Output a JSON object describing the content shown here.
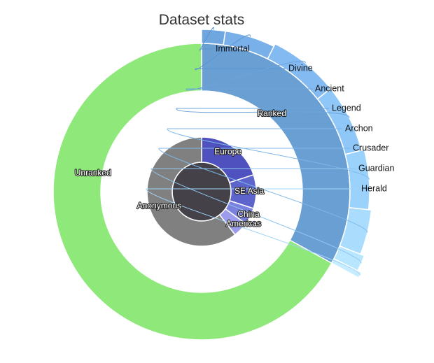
{
  "chart_data": {
    "type": "sunburst",
    "title": "Dataset stats",
    "colors": {
      "center": "#444148",
      "anonymous": "#808080",
      "ranked": "#6a9fd3",
      "unranked": "#8fe87a",
      "regions": [
        "#4f52be",
        "#5d64cc",
        "#7a80de",
        "#9d9cec"
      ],
      "ranks": [
        "#6fa6df",
        "#79b0e9",
        "#83baf1",
        "#8fc7f8",
        "#9bd2fb",
        "#a9dcfd",
        "#b8e6ff",
        "#c6edff"
      ],
      "leader": [
        "#5a94d0",
        "#5a94d0",
        "#6ba4dc",
        "#6ba4dc",
        "#7db6e8",
        "#7db6e8",
        "#8fc5f0",
        "#a0d4f8"
      ]
    },
    "rings": {
      "inner": [
        {
          "label": "Europe",
          "value": 20.0
        },
        {
          "label": "SE Asia",
          "value": 10.0
        },
        {
          "label": "China",
          "value": 5.0
        },
        {
          "label": "Americas",
          "value": 4.5
        },
        {
          "label": "Anonymous",
          "value": 60.5
        }
      ],
      "outer": [
        {
          "label": "Ranked",
          "value": 33.0
        },
        {
          "label": "Unranked",
          "value": 67.0
        }
      ],
      "ranked_breakdown": [
        {
          "label": "Immortal",
          "value": 2.2
        },
        {
          "label": "Divine",
          "value": 4.7
        },
        {
          "label": "Ancient",
          "value": 6.5
        },
        {
          "label": "Legend",
          "value": 6.3
        },
        {
          "label": "Archon",
          "value": 5.4
        },
        {
          "label": "Crusader",
          "value": 4.0
        },
        {
          "label": "Guardian",
          "value": 1.4
        },
        {
          "label": "Herald",
          "value": 0.5
        }
      ]
    }
  }
}
